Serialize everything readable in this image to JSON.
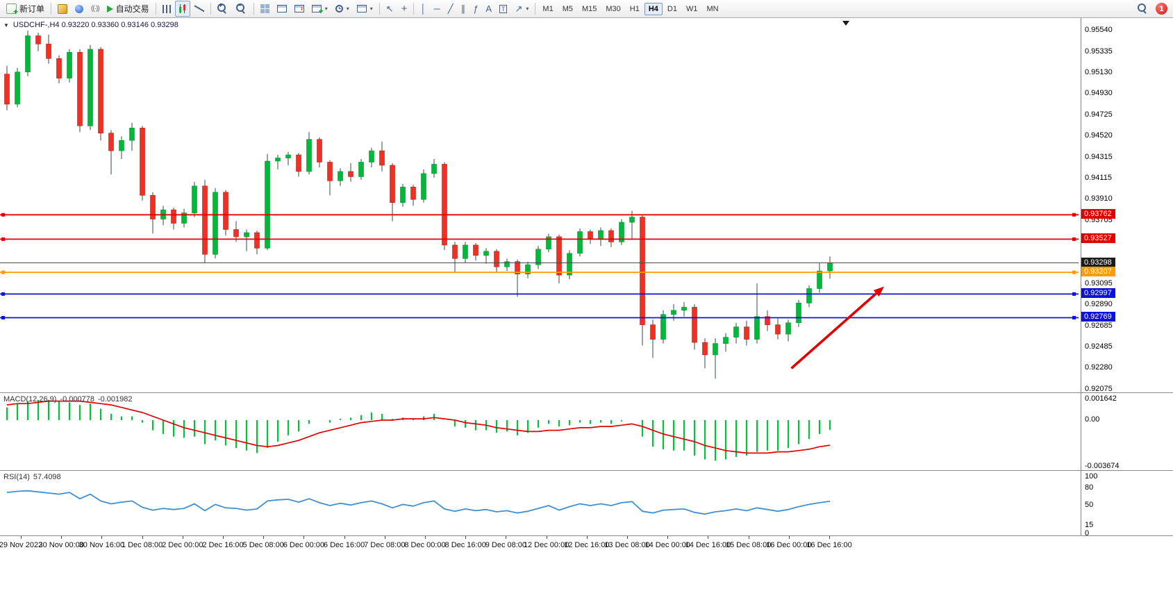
{
  "toolbar": {
    "new_order": "新订单",
    "autotrading": "自动交易",
    "timeframes": [
      "M1",
      "M5",
      "M15",
      "M30",
      "H1",
      "H4",
      "D1",
      "W1",
      "MN"
    ],
    "active_timeframe": "H4",
    "notification_count": "1",
    "icons": {
      "new_order": "order-ticket-plus",
      "market_watch": "gold-panel",
      "data_window": "blue-sphere",
      "signals": "broadcast",
      "autotrading": "green-play",
      "chart_bars": "ohlc-bars",
      "chart_candles": "candlesticks",
      "chart_line": "line-chart",
      "zoom_in": "magnifier-plus",
      "zoom_out": "magnifier-minus",
      "tile_windows": "grid",
      "auto_scroll": "chart-window",
      "chart_shift": "chart-window-shift",
      "new_chart": "chart-plus",
      "periods": "clock",
      "templates": "template-sheet",
      "cursor": "arrow-pointer",
      "crosshair": "cross",
      "vertical_line": "vertical-line",
      "horizontal_line": "horizontal-line",
      "trendline": "diagonal-line",
      "channel": "parallel-lines",
      "fibonacci": "fibonacci",
      "text": "letter-a",
      "text_label": "boxed-t",
      "arrows": "arrow-ne",
      "search": "magnifier",
      "notifications": "red-badge"
    },
    "glyphs": {
      "cursor": "↖",
      "crosshair": "+",
      "vline": "│",
      "hline": "─",
      "trend": "╱",
      "channel": "∥",
      "fibo": "ƒ",
      "text": "A",
      "label": "T",
      "arrows": "↗",
      "signal": "((·))"
    }
  },
  "chart": {
    "symbol_header": "USDCHF-,H4  0.93220 0.93360 0.93146 0.93298"
  },
  "chart_data": {
    "type": "candlestick",
    "symbol": "USDCHF-",
    "period": "H4",
    "last_ohlc": {
      "open": 0.9322,
      "high": 0.9336,
      "low": 0.93146,
      "close": 0.93298
    },
    "price_axis": {
      "max": 0.9554,
      "min": 0.92075,
      "labels": [
        "0.95540",
        "0.95335",
        "0.95130",
        "0.94930",
        "0.94725",
        "0.94520",
        "0.94315",
        "0.94115",
        "0.93910",
        "0.93705",
        "0.93505",
        "0.93300",
        "0.93095",
        "0.92890",
        "0.92685",
        "0.92485",
        "0.92280",
        "0.92075"
      ]
    },
    "time_labels": [
      "29 Nov 2022",
      "30 Nov 00:00",
      "30 Nov 16:00",
      "1 Dec 08:00",
      "2 Dec 00:00",
      "2 Dec 16:00",
      "5 Dec 08:00",
      "6 Dec 00:00",
      "6 Dec 16:00",
      "7 Dec 08:00",
      "8 Dec 00:00",
      "8 Dec 16:00",
      "9 Dec 08:00",
      "12 Dec 00:00",
      "12 Dec 16:00",
      "13 Dec 08:00",
      "14 Dec 00:00",
      "14 Dec 16:00",
      "15 Dec 08:00",
      "16 Dec 00:00",
      "16 Dec 16:00"
    ],
    "candles": [
      [
        0.9512,
        0.952,
        0.9477,
        0.9483
      ],
      [
        0.9483,
        0.9518,
        0.948,
        0.9514
      ],
      [
        0.9514,
        0.9554,
        0.951,
        0.9549
      ],
      [
        0.9549,
        0.9552,
        0.9534,
        0.9541
      ],
      [
        0.9541,
        0.955,
        0.9522,
        0.9527
      ],
      [
        0.9527,
        0.953,
        0.9503,
        0.9508
      ],
      [
        0.9508,
        0.9536,
        0.9504,
        0.9533
      ],
      [
        0.9533,
        0.9536,
        0.9456,
        0.9462
      ],
      [
        0.9462,
        0.954,
        0.9458,
        0.9536
      ],
      [
        0.9536,
        0.9538,
        0.9448,
        0.9455
      ],
      [
        0.9455,
        0.9458,
        0.9415,
        0.9438
      ],
      [
        0.9438,
        0.9452,
        0.943,
        0.9448
      ],
      [
        0.9448,
        0.9465,
        0.9438,
        0.946
      ],
      [
        0.946,
        0.9462,
        0.939,
        0.9395
      ],
      [
        0.9395,
        0.9398,
        0.9358,
        0.9372
      ],
      [
        0.9372,
        0.9385,
        0.9366,
        0.9381
      ],
      [
        0.9381,
        0.9383,
        0.9362,
        0.9368
      ],
      [
        0.9368,
        0.9382,
        0.9364,
        0.9378
      ],
      [
        0.9378,
        0.9408,
        0.9374,
        0.9404
      ],
      [
        0.9404,
        0.941,
        0.933,
        0.9338
      ],
      [
        0.9338,
        0.9402,
        0.9334,
        0.9398
      ],
      [
        0.9398,
        0.94,
        0.9356,
        0.9362
      ],
      [
        0.9362,
        0.937,
        0.935,
        0.9355
      ],
      [
        0.9355,
        0.9362,
        0.9341,
        0.9359
      ],
      [
        0.9359,
        0.9361,
        0.9338,
        0.9344
      ],
      [
        0.9344,
        0.9435,
        0.9342,
        0.9428
      ],
      [
        0.9428,
        0.9434,
        0.942,
        0.9431
      ],
      [
        0.9431,
        0.9437,
        0.9424,
        0.9434
      ],
      [
        0.9434,
        0.9436,
        0.9413,
        0.9418
      ],
      [
        0.9418,
        0.9456,
        0.9415,
        0.9449
      ],
      [
        0.9449,
        0.9451,
        0.9422,
        0.9427
      ],
      [
        0.9427,
        0.9429,
        0.9395,
        0.9409
      ],
      [
        0.9409,
        0.9421,
        0.9404,
        0.9418
      ],
      [
        0.9418,
        0.9426,
        0.9408,
        0.9413
      ],
      [
        0.9413,
        0.943,
        0.941,
        0.9427
      ],
      [
        0.9427,
        0.9441,
        0.9422,
        0.9438
      ],
      [
        0.9438,
        0.9447,
        0.9418,
        0.9424
      ],
      [
        0.9424,
        0.9426,
        0.937,
        0.9388
      ],
      [
        0.9388,
        0.9406,
        0.9384,
        0.9403
      ],
      [
        0.9403,
        0.9405,
        0.9385,
        0.9391
      ],
      [
        0.9391,
        0.942,
        0.9388,
        0.9416
      ],
      [
        0.9416,
        0.943,
        0.9412,
        0.9425
      ],
      [
        0.9425,
        0.9427,
        0.9342,
        0.9347
      ],
      [
        0.9347,
        0.935,
        0.932,
        0.9334
      ],
      [
        0.9334,
        0.935,
        0.933,
        0.9347
      ],
      [
        0.9347,
        0.9349,
        0.9332,
        0.9337
      ],
      [
        0.9337,
        0.9344,
        0.9329,
        0.9341
      ],
      [
        0.9341,
        0.9343,
        0.9321,
        0.9326
      ],
      [
        0.9326,
        0.9334,
        0.9322,
        0.9331
      ],
      [
        0.9331,
        0.9333,
        0.9297,
        0.9319
      ],
      [
        0.9319,
        0.9331,
        0.9315,
        0.9328
      ],
      [
        0.9328,
        0.9346,
        0.9324,
        0.9343
      ],
      [
        0.9343,
        0.9358,
        0.934,
        0.9355
      ],
      [
        0.9355,
        0.9357,
        0.931,
        0.9318
      ],
      [
        0.9318,
        0.9342,
        0.9314,
        0.9339
      ],
      [
        0.9339,
        0.9363,
        0.9336,
        0.936
      ],
      [
        0.936,
        0.9362,
        0.9348,
        0.9353
      ],
      [
        0.9353,
        0.9364,
        0.9346,
        0.9361
      ],
      [
        0.9361,
        0.9363,
        0.9345,
        0.935
      ],
      [
        0.935,
        0.9372,
        0.9347,
        0.9369
      ],
      [
        0.9369,
        0.938,
        0.9352,
        0.9374
      ],
      [
        0.9374,
        0.9376,
        0.925,
        0.927
      ],
      [
        0.927,
        0.9275,
        0.9238,
        0.9256
      ],
      [
        0.9256,
        0.9284,
        0.9252,
        0.928
      ],
      [
        0.928,
        0.929,
        0.9274,
        0.9284
      ],
      [
        0.9284,
        0.9292,
        0.9278,
        0.9287
      ],
      [
        0.9287,
        0.929,
        0.9246,
        0.9253
      ],
      [
        0.9253,
        0.9257,
        0.9228,
        0.9241
      ],
      [
        0.9241,
        0.9257,
        0.9218,
        0.9252
      ],
      [
        0.9252,
        0.9262,
        0.9244,
        0.9258
      ],
      [
        0.9258,
        0.9272,
        0.9252,
        0.9268
      ],
      [
        0.9268,
        0.9274,
        0.925,
        0.9256
      ],
      [
        0.9256,
        0.931,
        0.9252,
        0.9278
      ],
      [
        0.9278,
        0.9284,
        0.9264,
        0.927
      ],
      [
        0.927,
        0.9276,
        0.9256,
        0.9261
      ],
      [
        0.9261,
        0.9275,
        0.9254,
        0.9272
      ],
      [
        0.9272,
        0.9294,
        0.9268,
        0.9291
      ],
      [
        0.9291,
        0.9308,
        0.9287,
        0.9305
      ],
      [
        0.9305,
        0.933,
        0.9301,
        0.9322
      ],
      [
        0.9322,
        0.9336,
        0.93146,
        0.93298
      ]
    ],
    "hlines": [
      {
        "price": 0.93762,
        "label": "0.93762",
        "color": "#e00000"
      },
      {
        "price": 0.93527,
        "label": "0.93527",
        "color": "#e00000"
      },
      {
        "price": 0.93298,
        "label": "0.93298",
        "color": "#4a4a4a",
        "bid": true,
        "tag_color": "#1c1c1c"
      },
      {
        "price": 0.93207,
        "label": "0.93207",
        "color": "#ff9c00"
      },
      {
        "price": 0.92997,
        "label": "0.92997",
        "color": "#0d12d8"
      },
      {
        "price": 0.92769,
        "label": "0.92769",
        "color": "#0d12d8"
      }
    ],
    "trend_arrow": {
      "start": {
        "bar": 75.3,
        "price": 0.9228
      },
      "end": {
        "bar": 84.2,
        "price": 0.9307
      }
    },
    "macd": {
      "label": "MACD(12,26,9)",
      "value_main": "-0.000778",
      "value_signal": "-0.001982",
      "axis_labels": [
        "0.001642",
        "0.00",
        "-0.003674"
      ],
      "max": 0.001642,
      "min": -0.003674,
      "histogram": [
        0.001,
        0.0013,
        0.0015,
        0.0016,
        0.0016,
        0.0015,
        0.0014,
        0.0012,
        0.0013,
        0.0009,
        0.0005,
        0.0003,
        0.0003,
        -0.0002,
        -0.0008,
        -0.0011,
        -0.0013,
        -0.0014,
        -0.0013,
        -0.0019,
        -0.0016,
        -0.002,
        -0.0022,
        -0.0024,
        -0.0026,
        -0.0022,
        -0.0017,
        -0.0012,
        -0.0009,
        -0.0003,
        0.0,
        -0.0002,
        0.0001,
        0.0002,
        0.0004,
        0.0006,
        0.0005,
        0.0001,
        0.0002,
        0.0001,
        0.0003,
        0.0005,
        0.0,
        -0.0005,
        -0.0006,
        -0.0008,
        -0.0008,
        -0.001,
        -0.0009,
        -0.0012,
        -0.001,
        -0.0006,
        -0.0003,
        -0.0005,
        -0.0004,
        -0.0002,
        -0.0003,
        -0.0002,
        -0.0003,
        -0.0001,
        0.0,
        -0.0013,
        -0.0021,
        -0.0023,
        -0.0024,
        -0.0024,
        -0.0028,
        -0.0031,
        -0.0032,
        -0.0031,
        -0.0029,
        -0.0028,
        -0.0025,
        -0.0024,
        -0.0024,
        -0.0022,
        -0.0019,
        -0.0015,
        -0.0011,
        -0.000778
      ],
      "signal": [
        0.0012,
        0.0013,
        0.0013,
        0.0014,
        0.0015,
        0.0015,
        0.0015,
        0.0015,
        0.0014,
        0.0013,
        0.0012,
        0.001,
        0.0008,
        0.0006,
        0.0003,
        0.0,
        -0.0003,
        -0.0006,
        -0.0008,
        -0.001,
        -0.0012,
        -0.0014,
        -0.0016,
        -0.0018,
        -0.002,
        -0.0021,
        -0.002,
        -0.0018,
        -0.0016,
        -0.0013,
        -0.001,
        -0.0008,
        -0.0006,
        -0.0004,
        -0.0002,
        -0.0001,
        0.0,
        0.0,
        0.0001,
        0.0001,
        0.0001,
        0.0002,
        0.0001,
        0.0,
        -0.0002,
        -0.0003,
        -0.0004,
        -0.0006,
        -0.0007,
        -0.0008,
        -0.0009,
        -0.0009,
        -0.0008,
        -0.0008,
        -0.0007,
        -0.0006,
        -0.0006,
        -0.0005,
        -0.0005,
        -0.0004,
        -0.0003,
        -0.0005,
        -0.0008,
        -0.0011,
        -0.0013,
        -0.0015,
        -0.0017,
        -0.002,
        -0.0022,
        -0.0024,
        -0.0025,
        -0.0026,
        -0.0026,
        -0.0026,
        -0.0025,
        -0.0025,
        -0.0024,
        -0.0023,
        -0.0021,
        -0.001982
      ]
    },
    "rsi": {
      "label": "RSI(14)",
      "value": "57.4098",
      "axis_labels": [
        "100",
        "80",
        "50",
        "15",
        "0"
      ],
      "max": 100,
      "min": 0,
      "values": [
        73,
        75,
        76,
        74,
        72,
        70,
        73,
        62,
        70,
        58,
        53,
        56,
        58,
        47,
        42,
        45,
        43,
        45,
        53,
        41,
        52,
        46,
        45,
        42,
        44,
        58,
        60,
        61,
        56,
        62,
        55,
        50,
        54,
        51,
        55,
        58,
        53,
        46,
        52,
        49,
        55,
        58,
        44,
        40,
        44,
        41,
        43,
        39,
        41,
        37,
        40,
        45,
        50,
        42,
        48,
        53,
        50,
        53,
        50,
        55,
        57,
        40,
        37,
        42,
        43,
        44,
        38,
        35,
        39,
        41,
        44,
        41,
        46,
        43,
        40,
        43,
        48,
        52,
        55,
        57.41
      ]
    },
    "colors": {
      "up": "#00b93c",
      "up_border": "#069428",
      "down": "#ee3124",
      "down_border": "#b02318",
      "wick": "#37474f",
      "macd_hist": "#00c437",
      "macd_signal": "#e00000",
      "rsi_line": "#3f8fd2",
      "arrow": "#e00000"
    }
  }
}
